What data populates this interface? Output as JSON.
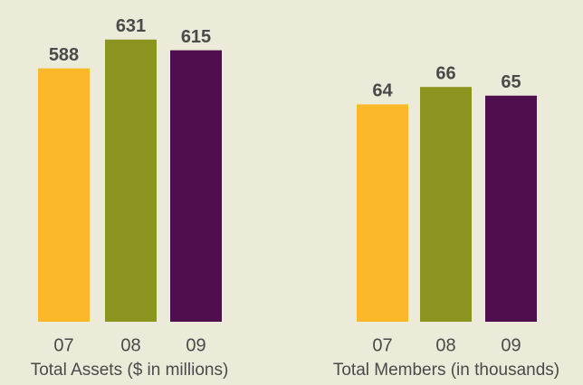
{
  "chart_data": [
    {
      "type": "bar",
      "title": "Total Assets ($ in millions)",
      "categories": [
        "07",
        "08",
        "09"
      ],
      "values": [
        588,
        631,
        615
      ],
      "colors": [
        "#fbb829",
        "#8c9520",
        "#4f0f4f"
      ],
      "ylim": [
        210,
        690
      ]
    },
    {
      "type": "bar",
      "title": "Total Members (in thousands)",
      "categories": [
        "07",
        "08",
        "09"
      ],
      "values": [
        64,
        66,
        65
      ],
      "colors": [
        "#fbb829",
        "#8c9520",
        "#4f0f4f"
      ],
      "ylim": [
        39,
        76
      ]
    }
  ]
}
